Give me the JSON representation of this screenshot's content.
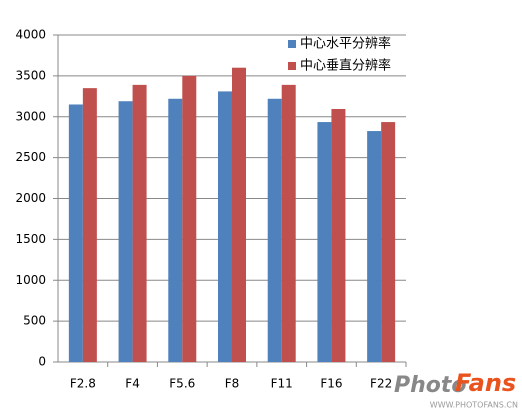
{
  "chart_data": {
    "type": "bar",
    "categories": [
      "F2.8",
      "F4",
      "F5.6",
      "F8",
      "F11",
      "F16",
      "F22"
    ],
    "series": [
      {
        "name": "中心水平分辨率",
        "color": "#4f81bd",
        "values": [
          3150,
          3190,
          3220,
          3310,
          3220,
          2935,
          2825
        ]
      },
      {
        "name": "中心垂直分辨率",
        "color": "#c0504d",
        "values": [
          3350,
          3390,
          3500,
          3600,
          3390,
          3095,
          2935
        ]
      }
    ],
    "ylim": [
      0,
      4000
    ],
    "yticks": [
      0,
      500,
      1000,
      1500,
      2000,
      2500,
      3000,
      3500,
      4000
    ],
    "grid": true,
    "legend": "upper-right"
  },
  "watermark": {
    "logo_a": "Photo",
    "logo_b": "Fans",
    "url": "WWW.PHOTOFANS.CN"
  }
}
